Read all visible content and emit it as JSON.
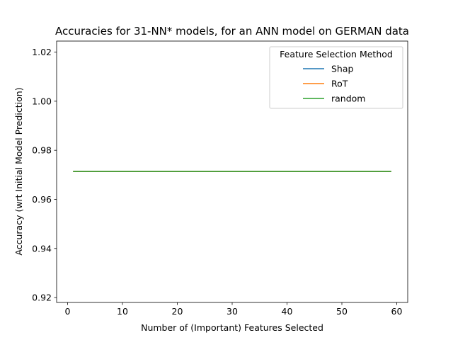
{
  "chart_data": {
    "type": "line",
    "title": "Accuracies for 31-NN* models, for an ANN model on GERMAN data",
    "xlabel": "Number of (Important) Features Selected",
    "ylabel": "Accuracy (wrt Initial Model Prediction)",
    "xlim": [
      -2,
      62
    ],
    "ylim": [
      0.918,
      1.0245
    ],
    "x_ticks": [
      0,
      10,
      20,
      30,
      40,
      50,
      60
    ],
    "y_ticks": [
      0.92,
      0.94,
      0.96,
      0.98,
      1.0,
      1.02
    ],
    "y_tick_labels": [
      "0.92",
      "0.94",
      "0.96",
      "0.98",
      "1.00",
      "1.02"
    ],
    "grid": false,
    "legend": {
      "title": "Feature Selection Method",
      "position": "top-right"
    },
    "series": [
      {
        "name": "Shap",
        "color": "#1f77b4",
        "x": [
          1,
          59
        ],
        "y": [
          0.9714,
          0.9714
        ]
      },
      {
        "name": "RoT",
        "color": "#ff7f0e",
        "x": [
          1,
          59
        ],
        "y": [
          0.9714,
          0.9714
        ]
      },
      {
        "name": "random",
        "color": "#2ca02c",
        "x": [
          1,
          59
        ],
        "y": [
          0.9714,
          0.9714
        ]
      }
    ]
  }
}
